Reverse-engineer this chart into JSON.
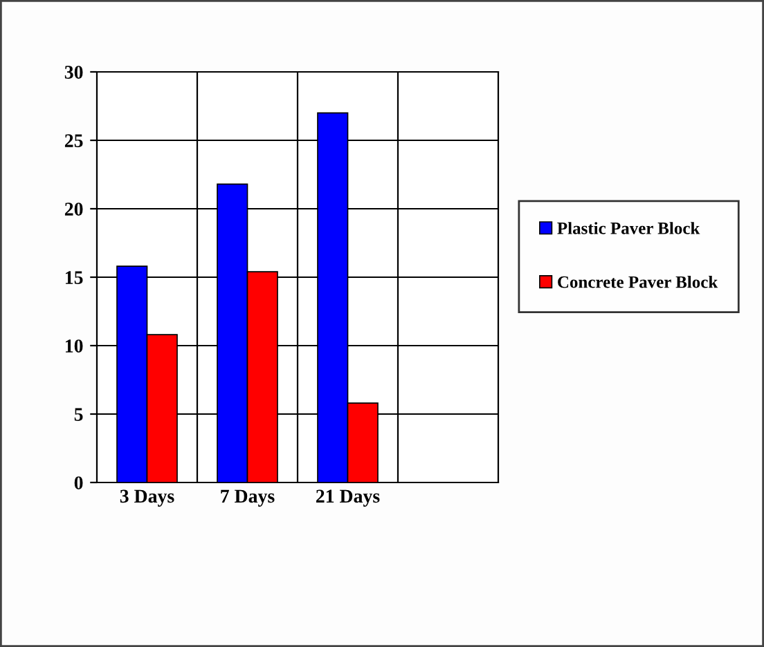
{
  "chart_data": {
    "type": "bar",
    "categories": [
      "3 Days",
      "7 Days",
      "21 Days",
      null
    ],
    "series": [
      {
        "name": "Plastic Paver Block",
        "color": "#0000ff",
        "values": [
          15.8,
          21.8,
          27,
          null
        ]
      },
      {
        "name": "Concrete Paver Block",
        "color": "#ff0000",
        "values": [
          10.8,
          15.4,
          5.8,
          null
        ]
      }
    ],
    "ylim": [
      0,
      30
    ],
    "yticks": [
      0,
      5,
      10,
      15,
      20,
      25,
      30
    ],
    "grid": true,
    "legend": "right"
  }
}
